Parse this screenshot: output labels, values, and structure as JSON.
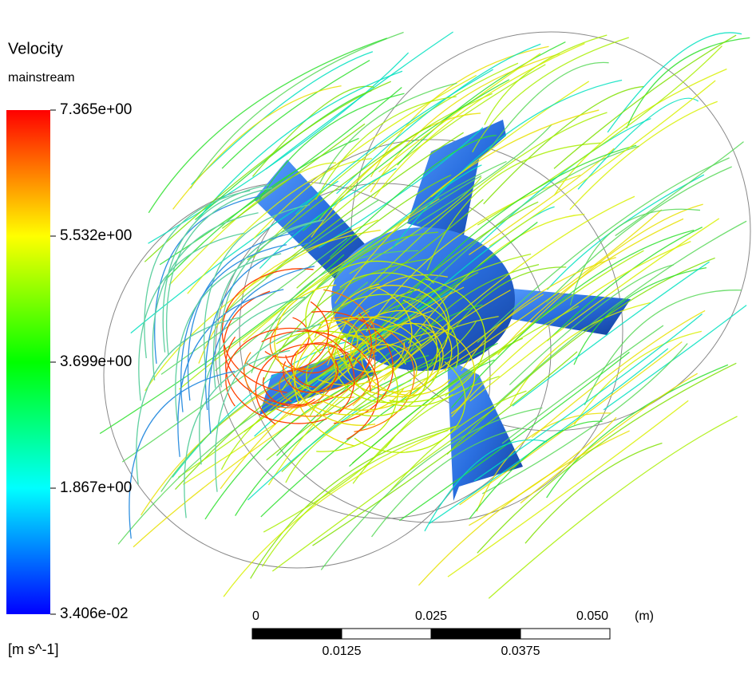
{
  "legend": {
    "title": "Velocity",
    "variable": "mainstream",
    "labels": [
      "7.365e+00",
      "5.532e+00",
      "3.699e+00",
      "1.867e+00",
      "3.406e-02"
    ],
    "unit": "[m s^-1]"
  },
  "scale_bar": {
    "top_labels": [
      "0",
      "0.025",
      "0.050"
    ],
    "unit": "(m)",
    "bottom_labels": [
      "0.0125",
      "0.0375"
    ]
  }
}
